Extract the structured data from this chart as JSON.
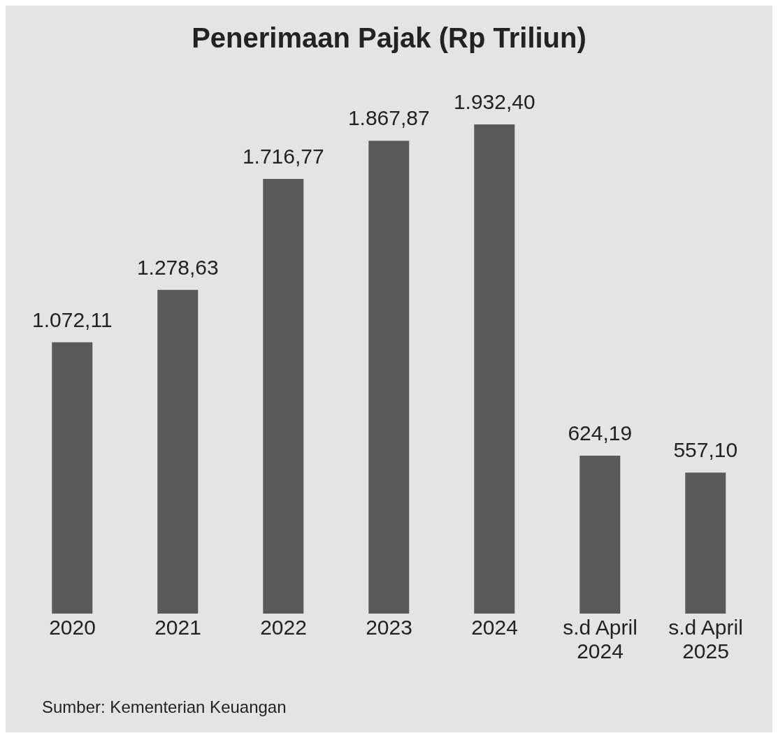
{
  "chart_data": {
    "type": "bar",
    "title": "Penerimaan Pajak (Rp Triliun)",
    "categories": [
      "2020",
      "2021",
      "2022",
      "2023",
      "2024",
      "s.d April 2024",
      "s.d April 2025"
    ],
    "values": [
      1072.11,
      1278.63,
      1716.77,
      1867.87,
      1932.4,
      624.19,
      557.1
    ],
    "value_labels": [
      "1.072,11",
      "1.278,63",
      "1.716,77",
      "1.867,87",
      "1.932,40",
      "624,19",
      "557,10"
    ],
    "color": "#595959",
    "annotations": [
      "Sumber: Kementerian Keuangan"
    ]
  }
}
